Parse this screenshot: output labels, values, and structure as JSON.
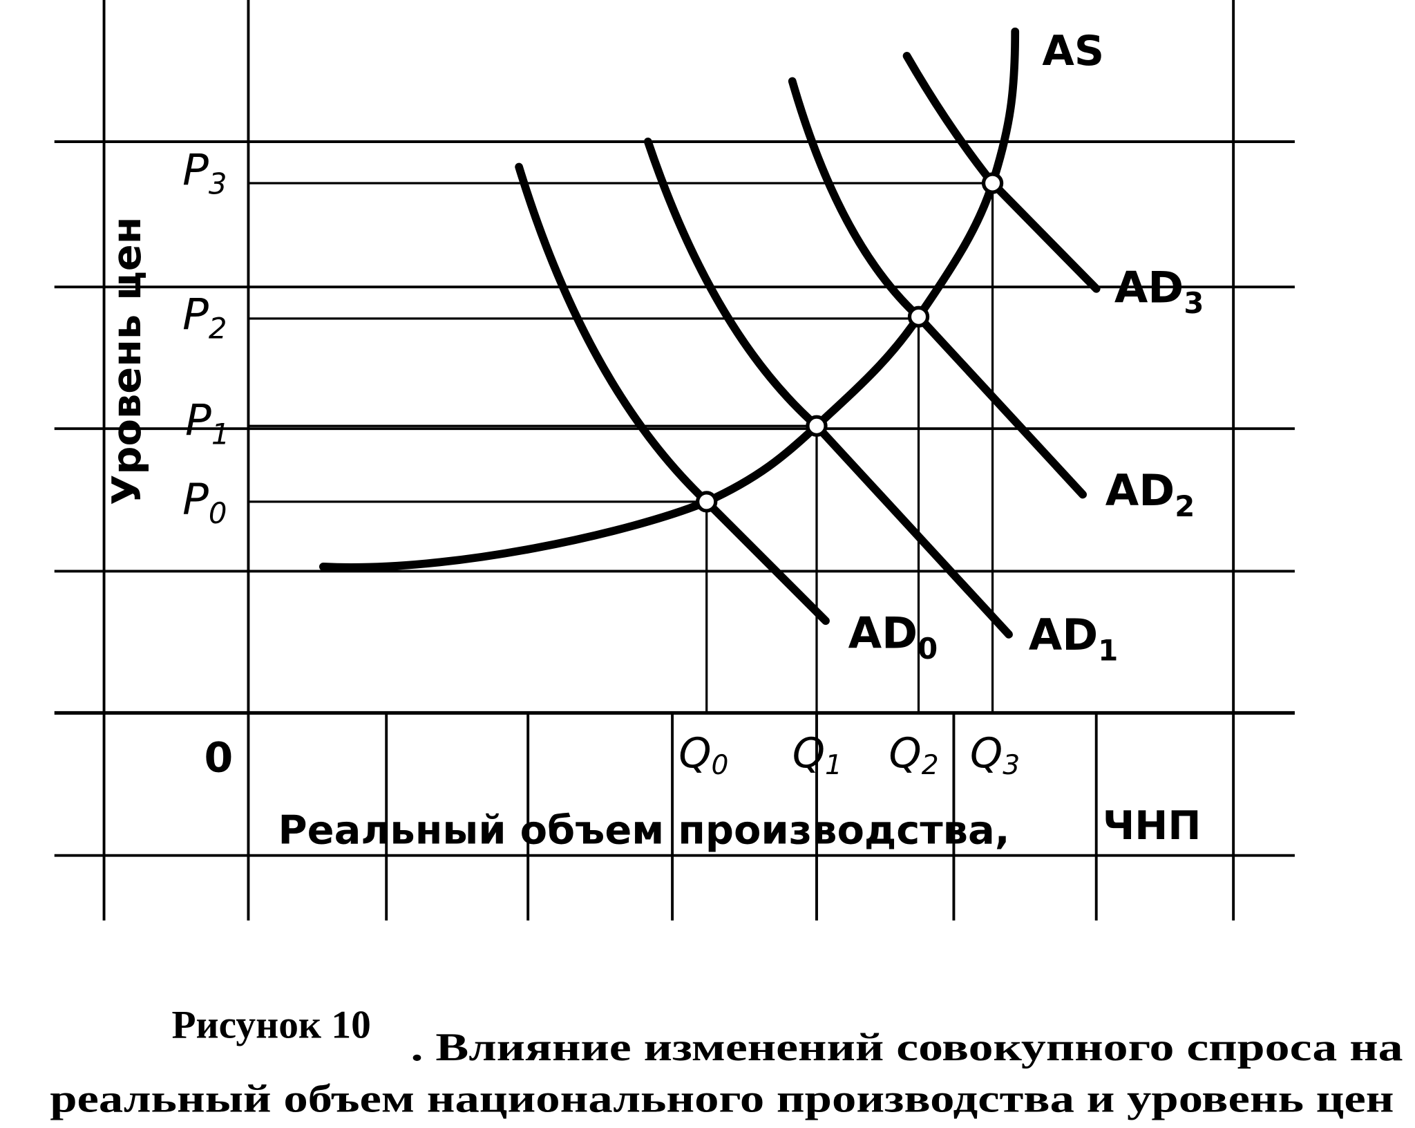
{
  "diagram": {
    "curves": {
      "as": "AS",
      "ad0": {
        "main": "AD",
        "sub": "0"
      },
      "ad1": {
        "main": "AD",
        "sub": "1"
      },
      "ad2": {
        "main": "AD",
        "sub": "2"
      },
      "ad3": {
        "main": "AD",
        "sub": "3"
      }
    },
    "price_levels": [
      {
        "main": "P",
        "sub": "0"
      },
      {
        "main": "P",
        "sub": "1"
      },
      {
        "main": "P",
        "sub": "2"
      },
      {
        "main": "P",
        "sub": "3"
      }
    ],
    "quantities": [
      {
        "main": "Q",
        "sub": "0"
      },
      {
        "main": "Q",
        "sub": "1"
      },
      {
        "main": "Q",
        "sub": "2"
      },
      {
        "main": "Q",
        "sub": "3"
      }
    ],
    "origin": "0",
    "y_axis_label": "Уровень цен",
    "x_axis_label": "Реальный объем производства,",
    "x_axis_unit": "ЧНП",
    "caption": {
      "number": "Рисунок 10",
      "line1": ". Влияние изменений совокупного спроса на",
      "line2": "реальный объем национального производства и уровень цен"
    }
  }
}
